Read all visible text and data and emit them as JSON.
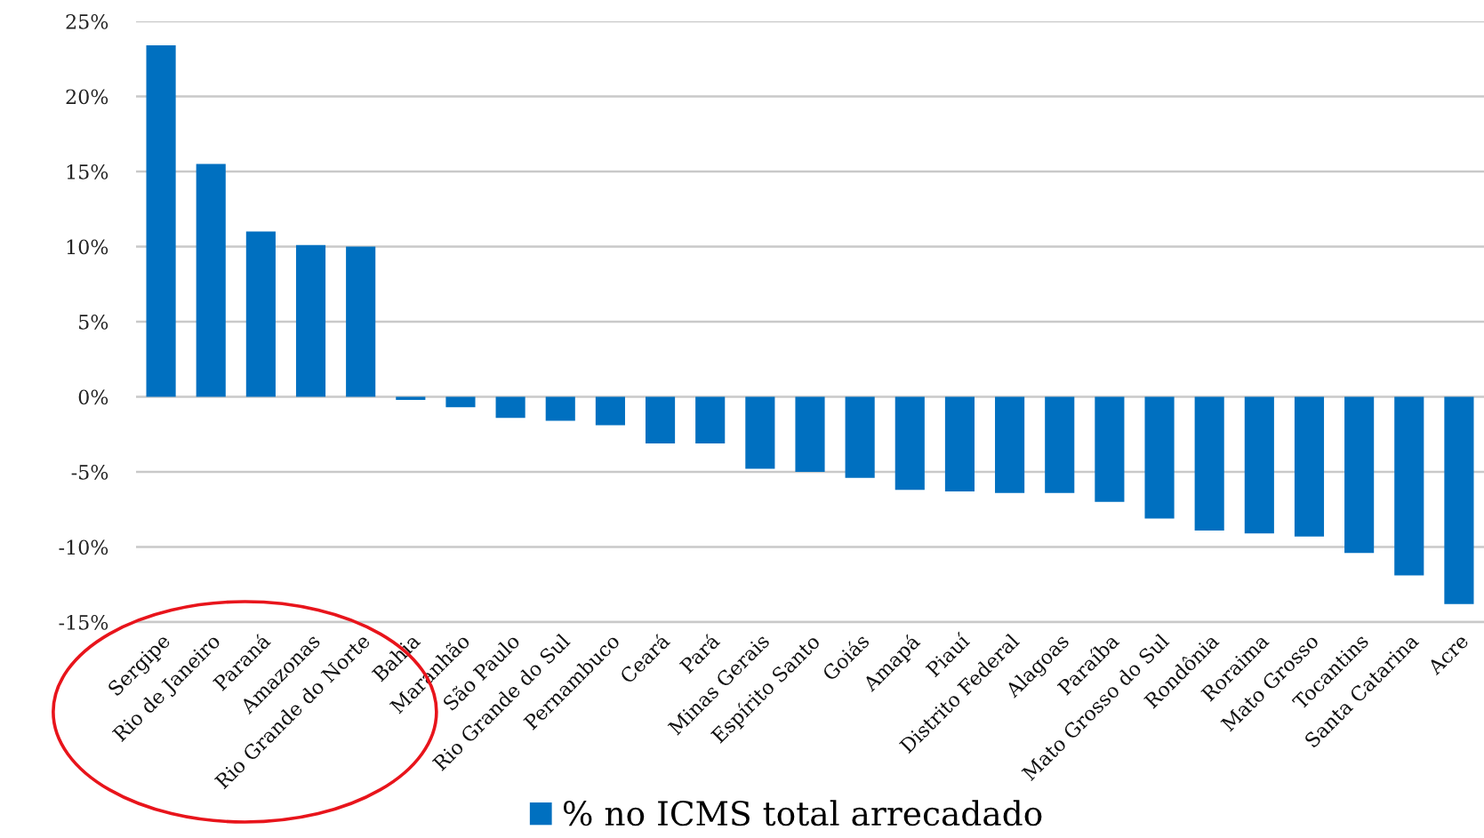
{
  "chart_data": {
    "type": "bar",
    "categories": [
      "Sergipe",
      "Rio de Janeiro",
      "Paraná",
      "Amazonas",
      "Rio Grande do Norte",
      "Bahia",
      "Maranhão",
      "São Paulo",
      "Rio Grande do Sul",
      "Pernambuco",
      "Ceará",
      "Pará",
      "Minas Gerais",
      "Espírito Santo",
      "Goiás",
      "Amapá",
      "Piauí",
      "Distrito Federal",
      "Alagoas",
      "Paraíba",
      "Mato Grosso do Sul",
      "Rondônia",
      "Roraima",
      "Mato Grosso",
      "Tocantins",
      "Santa Catarina",
      "Acre"
    ],
    "series": [
      {
        "name": "% no ICMS total arrecadado",
        "color": "#0070c0",
        "values": [
          23.4,
          15.5,
          11.0,
          10.1,
          10.0,
          -0.2,
          -0.7,
          -1.4,
          -1.6,
          -1.9,
          -3.1,
          -3.1,
          -4.8,
          -5.0,
          -5.4,
          -6.2,
          -6.3,
          -6.4,
          -6.4,
          -7.0,
          -8.1,
          -8.9,
          -9.1,
          -9.3,
          -10.4,
          -11.9,
          -13.8
        ]
      }
    ],
    "ylim": [
      -15,
      25
    ],
    "yticks": [
      {
        "value": -15,
        "label": "-15%"
      },
      {
        "value": -10,
        "label": "-10%"
      },
      {
        "value": -5,
        "label": "-5%"
      },
      {
        "value": 0,
        "label": "0%"
      },
      {
        "value": 5,
        "label": "5%"
      },
      {
        "value": 10,
        "label": "10%"
      },
      {
        "value": 15,
        "label": "15%"
      },
      {
        "value": 20,
        "label": "20%"
      },
      {
        "value": 25,
        "label": "25%"
      }
    ],
    "grid": "y",
    "legend": "bottom"
  }
}
